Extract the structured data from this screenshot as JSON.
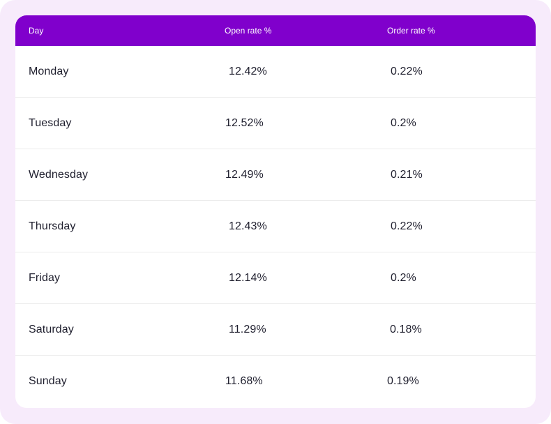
{
  "table": {
    "headers": [
      "Day",
      "Open rate %",
      "Order rate %"
    ],
    "rows": [
      {
        "day": "Monday",
        "open_rate": "12.42%",
        "order_rate": "0.22%"
      },
      {
        "day": "Tuesday",
        "open_rate": "12.52%",
        "order_rate": "0.2%"
      },
      {
        "day": "Wednesday",
        "open_rate": "12.49%",
        "order_rate": "0.21%"
      },
      {
        "day": "Thursday",
        "open_rate": "12.43%",
        "order_rate": "0.22%"
      },
      {
        "day": "Friday",
        "open_rate": "12.14%",
        "order_rate": "0.2%"
      },
      {
        "day": "Saturday",
        "open_rate": "11.29%",
        "order_rate": "0.18%"
      },
      {
        "day": "Sunday",
        "open_rate": "11.68%",
        "order_rate": "0.19%"
      }
    ]
  },
  "colors": {
    "header_background": "#8000cc",
    "outer_background": "#f7ebfb",
    "card_background": "#ffffff"
  }
}
